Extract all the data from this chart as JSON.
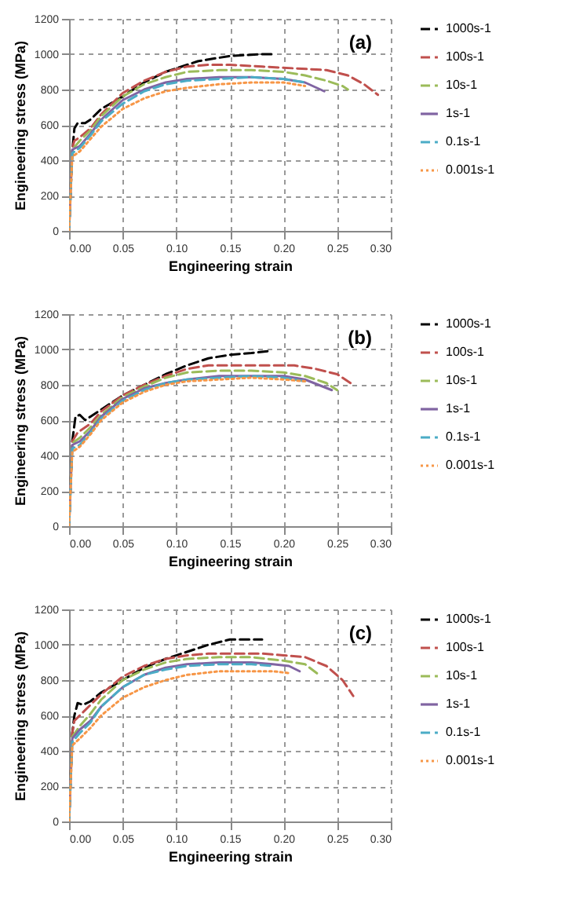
{
  "chart_data": [
    {
      "type": "line",
      "xlabel": "Engineering strain",
      "ylabel": "Engineering stress (MPa)",
      "annotations": [
        "(a)"
      ],
      "xlim": [
        0,
        0.3
      ],
      "ylim": [
        0,
        1200
      ],
      "xticks": [
        {
          "value": 0,
          "label": "0.00"
        },
        {
          "value": 0.05,
          "label": "0.05"
        },
        {
          "value": 0.1,
          "label": "0.10"
        },
        {
          "value": 0.15,
          "label": "0.15"
        },
        {
          "value": 0.2,
          "label": "0.20"
        },
        {
          "value": 0.25,
          "label": "0.25"
        },
        {
          "value": 0.3,
          "label": "0.30"
        }
      ],
      "yticks": [
        0,
        200,
        400,
        600,
        800,
        1000,
        1200
      ],
      "grid": true,
      "legend": "right",
      "series": [
        {
          "name": "1000s-1",
          "color": "#000000",
          "line_style": "dashed",
          "x": [
            0,
            0.003,
            0.005,
            0.008,
            0.015,
            0.02,
            0.03,
            0.05,
            0.07,
            0.09,
            0.1,
            0.12,
            0.15,
            0.18,
            0.19
          ],
          "values": [
            0,
            450,
            580,
            610,
            610,
            630,
            690,
            760,
            840,
            900,
            920,
            960,
            990,
            1000,
            1000
          ]
        },
        {
          "name": "100s-1",
          "color": "#c0504d",
          "line_style": "dashed",
          "x": [
            0,
            0.003,
            0.005,
            0.01,
            0.02,
            0.03,
            0.05,
            0.07,
            0.09,
            0.11,
            0.13,
            0.15,
            0.18,
            0.21,
            0.24,
            0.26,
            0.275,
            0.288
          ],
          "values": [
            0,
            470,
            510,
            530,
            580,
            660,
            780,
            850,
            900,
            930,
            940,
            940,
            930,
            920,
            910,
            880,
            830,
            770
          ]
        },
        {
          "name": "10s-1",
          "color": "#9bbb59",
          "line_style": "dashed",
          "x": [
            0,
            0.003,
            0.01,
            0.02,
            0.03,
            0.05,
            0.07,
            0.09,
            0.11,
            0.14,
            0.17,
            0.2,
            0.22,
            0.24,
            0.255,
            0.26
          ],
          "values": [
            0,
            460,
            510,
            570,
            650,
            760,
            830,
            870,
            900,
            910,
            910,
            900,
            880,
            850,
            820,
            800
          ]
        },
        {
          "name": "1s-1",
          "color": "#8064a2",
          "line_style": "solid",
          "x": [
            0,
            0.003,
            0.01,
            0.02,
            0.03,
            0.05,
            0.07,
            0.09,
            0.11,
            0.14,
            0.17,
            0.2,
            0.22,
            0.238
          ],
          "values": [
            0,
            460,
            480,
            550,
            630,
            740,
            800,
            840,
            860,
            870,
            870,
            860,
            840,
            790
          ]
        },
        {
          "name": "0.1s-1",
          "color": "#4bacc6",
          "line_style": "dashed",
          "x": [
            0,
            0.003,
            0.01,
            0.02,
            0.03,
            0.05,
            0.07,
            0.09,
            0.11,
            0.14,
            0.17,
            0.2,
            0.22
          ],
          "values": [
            0,
            440,
            470,
            540,
            620,
            720,
            790,
            830,
            850,
            860,
            870,
            860,
            840
          ]
        },
        {
          "name": "0.001s-1",
          "color": "#f79646",
          "line_style": "dotted",
          "x": [
            0,
            0.003,
            0.01,
            0.02,
            0.03,
            0.05,
            0.07,
            0.09,
            0.11,
            0.14,
            0.17,
            0.2,
            0.22
          ],
          "values": [
            0,
            420,
            450,
            520,
            590,
            690,
            750,
            790,
            810,
            830,
            840,
            840,
            820
          ]
        }
      ]
    },
    {
      "type": "line",
      "xlabel": "Engineering strain",
      "ylabel": "Engineering stress (MPa)",
      "annotations": [
        "(b)"
      ],
      "xlim": [
        0,
        0.3
      ],
      "ylim": [
        0,
        1200
      ],
      "xticks": [
        {
          "value": 0,
          "label": "0.00"
        },
        {
          "value": 0.05,
          "label": "0.05"
        },
        {
          "value": 0.1,
          "label": "0.10"
        },
        {
          "value": 0.15,
          "label": "0.15"
        },
        {
          "value": 0.2,
          "label": "0.20"
        },
        {
          "value": 0.25,
          "label": "0.25"
        },
        {
          "value": 0.3,
          "label": "0.30"
        }
      ],
      "yticks": [
        0,
        200,
        400,
        600,
        800,
        1000,
        1200
      ],
      "grid": true,
      "legend": "right",
      "series": [
        {
          "name": "1000s-1",
          "color": "#000000",
          "line_style": "dashed",
          "x": [
            0,
            0.003,
            0.006,
            0.01,
            0.015,
            0.02,
            0.03,
            0.05,
            0.07,
            0.09,
            0.11,
            0.13,
            0.15,
            0.17,
            0.185
          ],
          "values": [
            0,
            480,
            620,
            630,
            600,
            620,
            660,
            740,
            800,
            860,
            910,
            950,
            970,
            980,
            990
          ]
        },
        {
          "name": "100s-1",
          "color": "#c0504d",
          "line_style": "dashed",
          "x": [
            0,
            0.003,
            0.008,
            0.02,
            0.03,
            0.05,
            0.07,
            0.09,
            0.11,
            0.13,
            0.15,
            0.18,
            0.21,
            0.23,
            0.25,
            0.265
          ],
          "values": [
            0,
            480,
            530,
            580,
            650,
            740,
            800,
            850,
            890,
            910,
            910,
            910,
            910,
            890,
            860,
            800
          ]
        },
        {
          "name": "10s-1",
          "color": "#9bbb59",
          "line_style": "dashed",
          "x": [
            0,
            0.003,
            0.01,
            0.02,
            0.03,
            0.05,
            0.07,
            0.09,
            0.11,
            0.14,
            0.17,
            0.2,
            0.22,
            0.24,
            0.25
          ],
          "values": [
            0,
            470,
            500,
            560,
            630,
            730,
            790,
            840,
            870,
            880,
            880,
            870,
            850,
            810,
            770
          ]
        },
        {
          "name": "1s-1",
          "color": "#8064a2",
          "line_style": "solid",
          "x": [
            0,
            0.003,
            0.01,
            0.02,
            0.03,
            0.05,
            0.07,
            0.09,
            0.11,
            0.14,
            0.17,
            0.2,
            0.22,
            0.245
          ],
          "values": [
            0,
            460,
            480,
            540,
            620,
            720,
            780,
            810,
            830,
            850,
            850,
            850,
            830,
            770
          ]
        },
        {
          "name": "0.1s-1",
          "color": "#4bacc6",
          "line_style": "dashed",
          "x": [
            0,
            0.003,
            0.01,
            0.02,
            0.03,
            0.05,
            0.07,
            0.09,
            0.11,
            0.14,
            0.17,
            0.2,
            0.22
          ],
          "values": [
            0,
            440,
            460,
            530,
            610,
            710,
            770,
            810,
            830,
            840,
            850,
            840,
            820
          ]
        },
        {
          "name": "0.001s-1",
          "color": "#f79646",
          "line_style": "dotted",
          "x": [
            0,
            0.003,
            0.01,
            0.02,
            0.03,
            0.05,
            0.07,
            0.09,
            0.11,
            0.14,
            0.17,
            0.2,
            0.22
          ],
          "values": [
            0,
            420,
            450,
            520,
            600,
            700,
            760,
            800,
            820,
            830,
            840,
            830,
            820
          ]
        }
      ]
    },
    {
      "type": "line",
      "xlabel": "Engineering strain",
      "ylabel": "Engineering stress (MPa)",
      "annotations": [
        "(c)"
      ],
      "xlim": [
        0,
        0.3
      ],
      "ylim": [
        0,
        1200
      ],
      "xticks": [
        {
          "value": 0,
          "label": "0.00"
        },
        {
          "value": 0.05,
          "label": "0.05"
        },
        {
          "value": 0.1,
          "label": "0.10"
        },
        {
          "value": 0.15,
          "label": "0.15"
        },
        {
          "value": 0.2,
          "label": "0.20"
        },
        {
          "value": 0.25,
          "label": "0.25"
        },
        {
          "value": 0.3,
          "label": "0.30"
        }
      ],
      "yticks": [
        0,
        200,
        400,
        600,
        800,
        1000,
        1200
      ],
      "grid": true,
      "legend": "right",
      "series": [
        {
          "name": "1000s-1",
          "color": "#000000",
          "line_style": "dashed",
          "x": [
            0,
            0.003,
            0.005,
            0.008,
            0.013,
            0.02,
            0.03,
            0.05,
            0.07,
            0.09,
            0.11,
            0.13,
            0.15,
            0.17,
            0.18
          ],
          "values": [
            0,
            500,
            600,
            670,
            660,
            680,
            730,
            800,
            870,
            920,
            960,
            1000,
            1030,
            1030,
            1030
          ]
        },
        {
          "name": "100s-1",
          "color": "#c0504d",
          "line_style": "dashed",
          "x": [
            0,
            0.003,
            0.005,
            0.01,
            0.02,
            0.03,
            0.05,
            0.07,
            0.09,
            0.11,
            0.13,
            0.15,
            0.18,
            0.2,
            0.22,
            0.24,
            0.255,
            0.265
          ],
          "values": [
            0,
            500,
            570,
            600,
            660,
            720,
            820,
            880,
            920,
            940,
            950,
            950,
            950,
            940,
            930,
            880,
            800,
            710
          ]
        },
        {
          "name": "10s-1",
          "color": "#9bbb59",
          "line_style": "dashed",
          "x": [
            0,
            0.003,
            0.01,
            0.02,
            0.03,
            0.05,
            0.07,
            0.09,
            0.11,
            0.14,
            0.17,
            0.2,
            0.22,
            0.233
          ],
          "values": [
            0,
            480,
            540,
            610,
            690,
            800,
            860,
            900,
            920,
            930,
            930,
            910,
            890,
            830
          ]
        },
        {
          "name": "1s-1",
          "color": "#8064a2",
          "line_style": "solid",
          "x": [
            0,
            0.003,
            0.01,
            0.02,
            0.03,
            0.05,
            0.07,
            0.09,
            0.11,
            0.14,
            0.17,
            0.19,
            0.205,
            0.215
          ],
          "values": [
            0,
            470,
            520,
            570,
            650,
            760,
            830,
            870,
            890,
            900,
            900,
            890,
            880,
            850
          ]
        },
        {
          "name": "0.1s-1",
          "color": "#4bacc6",
          "line_style": "dashed",
          "x": [
            0,
            0.003,
            0.01,
            0.02,
            0.03,
            0.05,
            0.07,
            0.09,
            0.11,
            0.14,
            0.17,
            0.19
          ],
          "values": [
            0,
            450,
            500,
            560,
            650,
            760,
            830,
            860,
            880,
            890,
            890,
            880
          ]
        },
        {
          "name": "0.001s-1",
          "color": "#f79646",
          "line_style": "dotted",
          "x": [
            0,
            0.003,
            0.01,
            0.02,
            0.03,
            0.05,
            0.07,
            0.09,
            0.11,
            0.14,
            0.17,
            0.19,
            0.205
          ],
          "values": [
            0,
            430,
            470,
            530,
            600,
            700,
            760,
            800,
            830,
            850,
            850,
            850,
            840
          ]
        }
      ]
    }
  ]
}
